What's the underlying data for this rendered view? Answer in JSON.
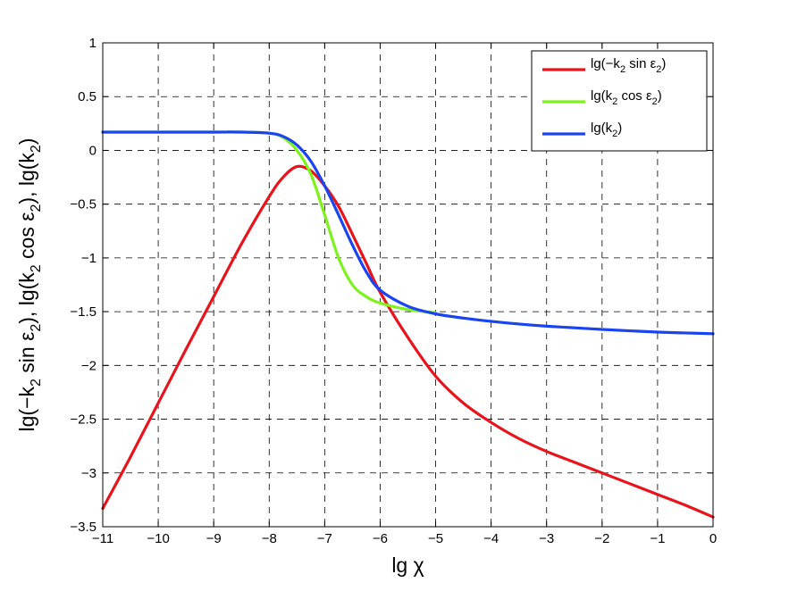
{
  "chart_data": {
    "type": "line",
    "xlabel": "lg χ",
    "ylabel_parts": [
      "lg(−k",
      "2",
      " sin ε",
      "2",
      "),   lg(k",
      "2",
      " cos ε",
      "2",
      "),   lg(k",
      "2",
      ")"
    ],
    "xlim": [
      -11,
      0
    ],
    "ylim": [
      -3.5,
      1
    ],
    "x_ticks": [
      -11,
      -10,
      -9,
      -8,
      -7,
      -6,
      -5,
      -4,
      -3,
      -2,
      -1,
      0
    ],
    "x_tick_labels": [
      "−11",
      "−10",
      "−9",
      "−8",
      "−7",
      "−6",
      "−5",
      "−4",
      "−3",
      "−2",
      "−1",
      "0"
    ],
    "y_ticks": [
      1,
      0.5,
      0,
      -0.5,
      -1,
      -1.5,
      -2,
      -2.5,
      -3,
      -3.5
    ],
    "y_tick_labels": [
      "1",
      "0.5",
      "0",
      "−0.5",
      "−1",
      "−1.5",
      "−2",
      "−2.5",
      "−3",
      "−3.5"
    ],
    "grid": true,
    "legend_position": "top-right",
    "series": [
      {
        "name_parts": [
          "lg(−k",
          "2",
          " sin ε",
          "2",
          ")"
        ],
        "color": "#e8141c",
        "x": [
          -11,
          -10.5,
          -10,
          -9.5,
          -9,
          -8.5,
          -8,
          -7.75,
          -7.5,
          -7.25,
          -7,
          -6.75,
          -6.5,
          -6.25,
          -6,
          -5.5,
          -5,
          -4.5,
          -4,
          -3.5,
          -3,
          -2.5,
          -2,
          -1.5,
          -1,
          -0.5,
          0
        ],
        "y": [
          -3.33,
          -2.85,
          -2.35,
          -1.85,
          -1.36,
          -0.87,
          -0.43,
          -0.25,
          -0.15,
          -0.19,
          -0.33,
          -0.52,
          -0.78,
          -1.05,
          -1.32,
          -1.74,
          -2.1,
          -2.35,
          -2.53,
          -2.68,
          -2.8,
          -2.9,
          -3.0,
          -3.1,
          -3.2,
          -3.3,
          -3.41
        ]
      },
      {
        "name_parts": [
          "lg(k",
          "2",
          " cos ε",
          "2",
          ")"
        ],
        "color": "#7df21c",
        "x": [
          -11,
          -10,
          -9,
          -8.5,
          -8,
          -7.75,
          -7.5,
          -7.25,
          -7,
          -6.75,
          -6.5,
          -6.25,
          -6,
          -5.5,
          -5
        ],
        "y": [
          0.17,
          0.17,
          0.17,
          0.17,
          0.16,
          0.12,
          0.0,
          -0.22,
          -0.6,
          -1.0,
          -1.25,
          -1.36,
          -1.42,
          -1.48,
          -1.51
        ]
      },
      {
        "name_parts": [
          "lg(k",
          "2",
          ")"
        ],
        "color": "#1a44f0",
        "x": [
          -11,
          -10,
          -9,
          -8.5,
          -8,
          -7.75,
          -7.5,
          -7.25,
          -7,
          -6.75,
          -6.5,
          -6.25,
          -6,
          -5.5,
          -5,
          -4.5,
          -4,
          -3.5,
          -3,
          -2.5,
          -2,
          -1.5,
          -1,
          -0.5,
          0
        ],
        "y": [
          0.17,
          0.17,
          0.17,
          0.17,
          0.16,
          0.13,
          0.05,
          -0.1,
          -0.33,
          -0.6,
          -0.88,
          -1.13,
          -1.3,
          -1.45,
          -1.52,
          -1.56,
          -1.59,
          -1.615,
          -1.635,
          -1.65,
          -1.665,
          -1.678,
          -1.69,
          -1.698,
          -1.705
        ]
      }
    ]
  }
}
